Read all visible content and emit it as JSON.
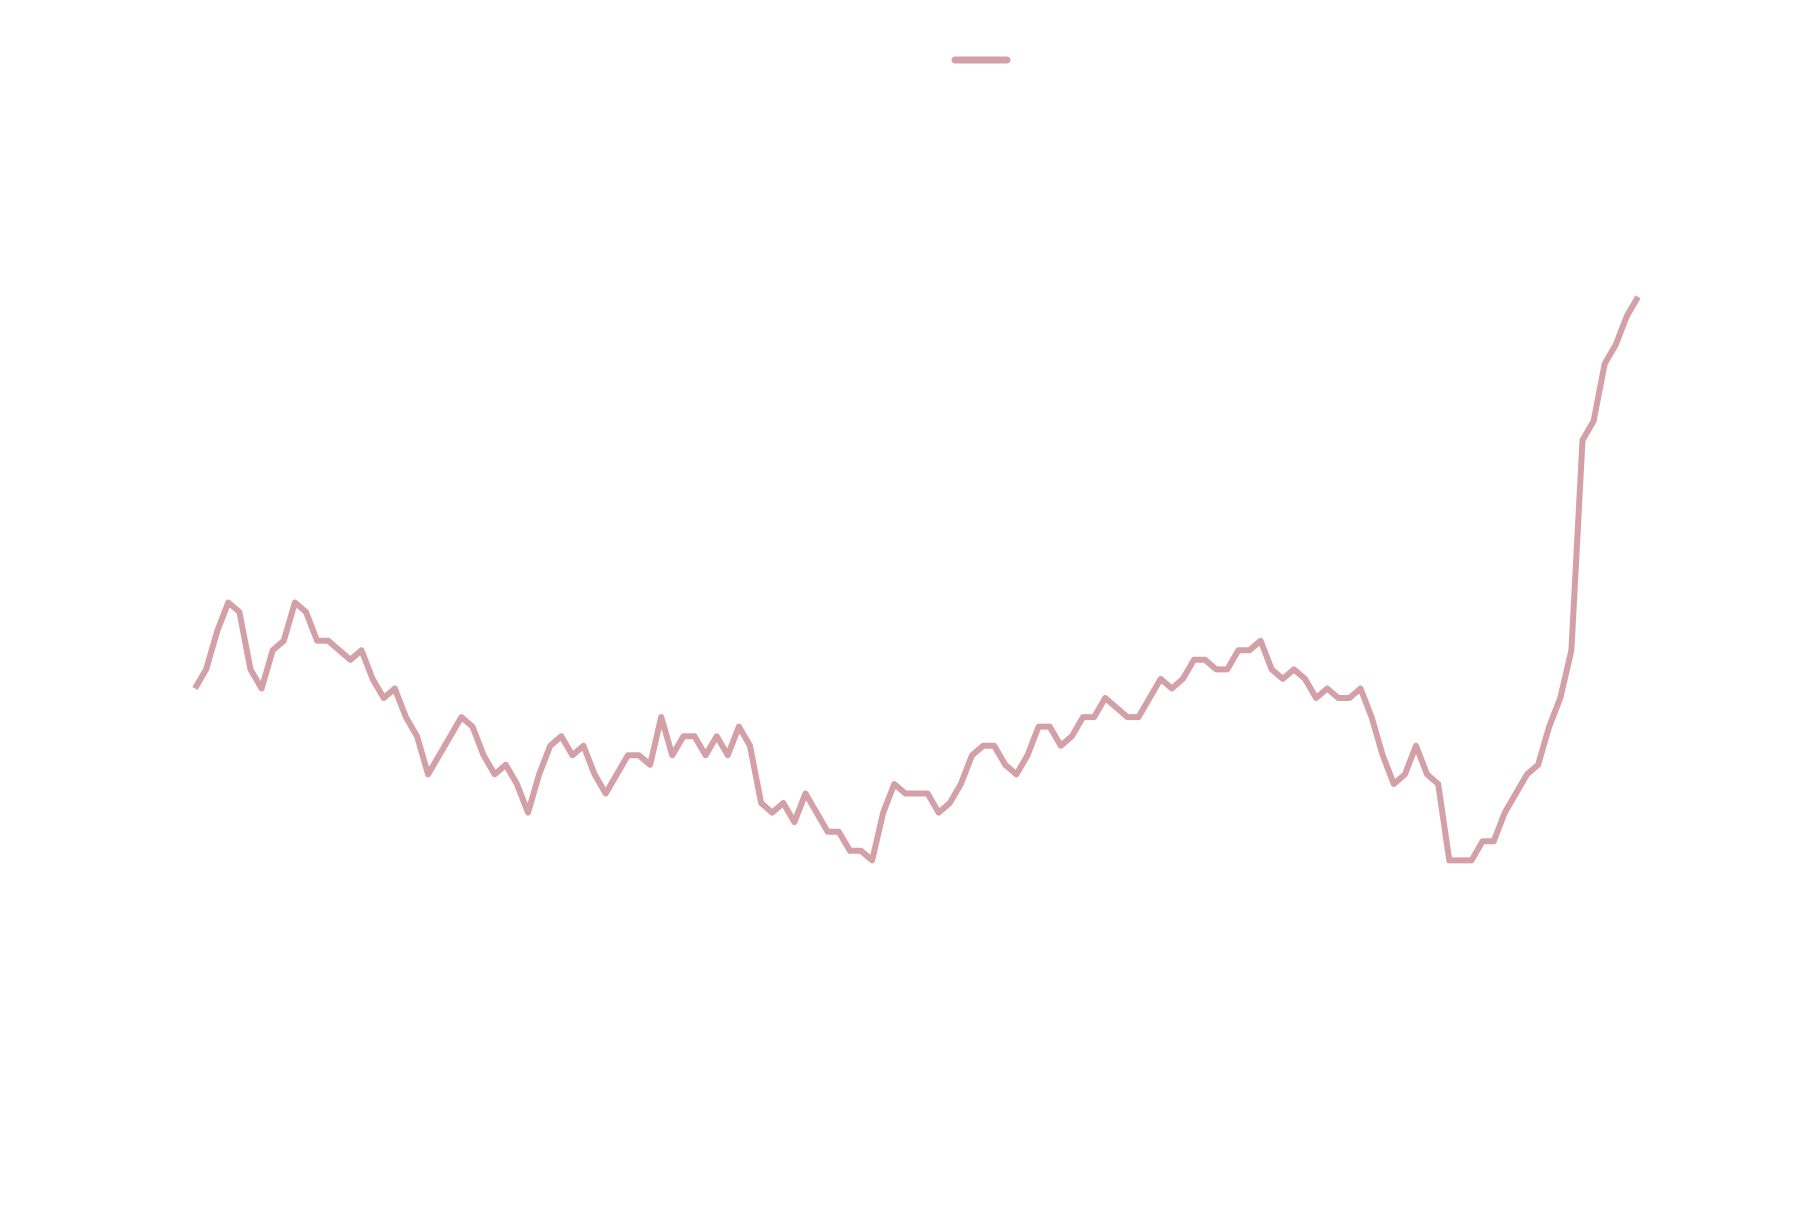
{
  "chart_data": {
    "type": "line",
    "title": "",
    "xlabel": "",
    "ylabel": "",
    "grid": false,
    "legend_position": "top-center",
    "line_color": "#d4a0a7",
    "ylim": [
      0,
      100
    ],
    "series": [
      {
        "values": [
          41,
          43,
          47,
          50,
          49,
          43,
          41,
          45,
          46,
          50,
          49,
          46,
          46,
          45,
          44,
          45,
          42,
          40,
          41,
          38,
          36,
          32,
          34,
          36,
          38,
          37,
          34,
          32,
          33,
          31,
          28,
          32,
          35,
          36,
          34,
          35,
          32,
          30,
          32,
          34,
          34,
          33,
          38,
          34,
          36,
          36,
          34,
          36,
          34,
          37,
          35,
          29,
          28,
          29,
          27,
          30,
          28,
          26,
          26,
          24,
          24,
          23,
          28,
          31,
          30,
          30,
          30,
          28,
          29,
          31,
          34,
          35,
          35,
          33,
          32,
          34,
          37,
          37,
          35,
          36,
          38,
          38,
          40,
          39,
          38,
          38,
          40,
          42,
          41,
          42,
          44,
          44,
          43,
          43,
          45,
          45,
          46,
          43,
          42,
          43,
          42,
          40,
          41,
          40,
          40,
          41,
          38,
          34,
          31,
          32,
          35,
          32,
          31,
          23,
          23,
          23,
          25,
          25,
          28,
          30,
          32,
          33,
          37,
          40,
          45,
          67,
          69,
          75,
          77,
          80,
          82
        ]
      }
    ]
  }
}
